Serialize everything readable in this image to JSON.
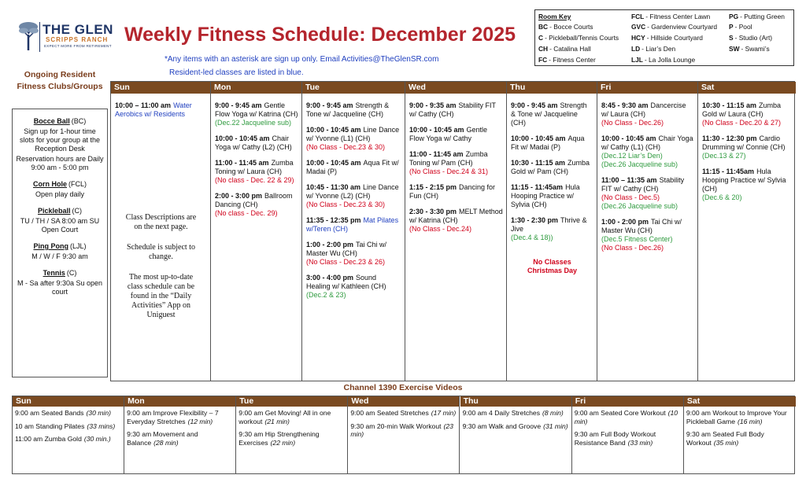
{
  "header": {
    "logo_name": "THE GLEN",
    "logo_sub": "SCRIPPS RANCH",
    "logo_tagline": "EXPECT MORE FROM RETIREMENT",
    "title": "Weekly Fitness Schedule: December 2025",
    "note_signup": "*Any items with an asterisk are sign up only. Email Activities@TheGlenSR.com",
    "note_resident": "Resident-led classes are listed in blue."
  },
  "room_key": {
    "title": "Room Key",
    "items": [
      {
        "code": "BC",
        "name": "- Bocce Courts"
      },
      {
        "code": "C",
        "name": "- Pickleball/Tennis Courts"
      },
      {
        "code": "CH",
        "name": "- Catalina Hall"
      },
      {
        "code": "FC",
        "name": "- Fitness Center"
      },
      {
        "code": "FCL",
        "name": "- Fitness Center Lawn"
      },
      {
        "code": "GVC",
        "name": "- Gardenview Courtyard"
      },
      {
        "code": "HCY",
        "name": "- Hillside Courtyard"
      },
      {
        "code": "LD",
        "name": "- Liar’s Den"
      },
      {
        "code": "LJL",
        "name": "- La Jolla Lounge"
      },
      {
        "code": "PG",
        "name": "- Putting Green"
      },
      {
        "code": "P",
        "name": "- Pool"
      },
      {
        "code": "S",
        "name": "- Studio (Art)"
      },
      {
        "code": "SW",
        "name": "- Swami’s"
      }
    ]
  },
  "clubs": {
    "title": "Ongoing Resident Fitness Clubs/Groups",
    "items": [
      {
        "name": "Bocce Ball",
        "room": "(BC)",
        "details": [
          "Sign up for 1-hour time slots for your group at the Reception Desk",
          "Reservation hours are Daily 9:00 am - 5:00 pm"
        ]
      },
      {
        "name": "Corn Hole",
        "room": "(FCL)",
        "details": [
          "Open play daily"
        ]
      },
      {
        "name": "Pickleball",
        "room": "(C)",
        "details": [
          "TU / TH / SA 8:00 am SU Open Court"
        ]
      },
      {
        "name": "Ping Pong",
        "room": "(LJL)",
        "details": [
          "M / W / F 9:30 am"
        ]
      },
      {
        "name": "Tennis",
        "room": "(C)",
        "details": [
          "M - Sa after 9:30a Su open court"
        ]
      }
    ]
  },
  "schedule": {
    "days": [
      {
        "name": "Sun",
        "entries": [
          {
            "time": "10:00 – 11:00 am",
            "text": "Water Aerobics w/ Residents",
            "resident_led": true,
            "notes": []
          }
        ],
        "extras": [
          "Class Descriptions are on the next page.",
          "Schedule is subject to change.",
          "The most up-to-date class schedule can be found in the “Daily Activities” App on Uniguest"
        ]
      },
      {
        "name": "Mon",
        "entries": [
          {
            "time": "9:00 - 9:45 am",
            "text": "Gentle Flow Yoga w/ Katrina (CH)",
            "notes": [
              {
                "text": "(Dec.22 Jacqueline sub)",
                "color": "green"
              }
            ]
          },
          {
            "time": "10:00 - 10:45 am",
            "text": "Chair Yoga w/ Cathy (L2) (CH)",
            "notes": []
          },
          {
            "time": "11:00 - 11:45 am",
            "text": "Zumba Toning w/ Laura (CH)",
            "notes": [
              {
                "text": "(No class - Dec. 22 & 29)",
                "color": "red"
              }
            ]
          },
          {
            "time": "2:00 - 3:00 pm",
            "text": "Ballroom Dancing (CH)",
            "notes": [
              {
                "text": "(No class - Dec. 29)",
                "color": "red"
              }
            ]
          }
        ]
      },
      {
        "name": "Tue",
        "entries": [
          {
            "time": "9:00 - 9:45 am",
            "text": "Strength & Tone w/ Jacqueline (CH)",
            "notes": []
          },
          {
            "time": "10:00 - 10:45 am",
            "text": "Line Dance w/ Yvonne (L1) (CH)",
            "notes": [
              {
                "text": "(No Class - Dec.23 & 30)",
                "color": "red"
              }
            ]
          },
          {
            "time": "10:00 - 10:45 am",
            "text": "Aqua Fit w/ Madai (P)",
            "notes": []
          },
          {
            "time": "10:45 - 11:30 am",
            "text": "Line Dance w/ Yvonne (L2) (CH)",
            "notes": [
              {
                "text": "(No Class - Dec.23 & 30)",
                "color": "red"
              }
            ]
          },
          {
            "time": "11:35 - 12:35 pm",
            "text": "Mat Pilates w/Teren (CH)",
            "resident_led": true,
            "notes": []
          },
          {
            "time": "1:00 - 2:00 pm",
            "text": "Tai Chi w/ Master Wu (CH)",
            "notes": [
              {
                "text": "(No Class - Dec.23 & 26)",
                "color": "red"
              }
            ]
          },
          {
            "time": "3:00 - 4:00 pm",
            "text": "Sound Healing w/ Kathleen (CH)",
            "notes": [
              {
                "text": "(Dec.2 & 23)",
                "color": "green"
              }
            ]
          }
        ]
      },
      {
        "name": "Wed",
        "entries": [
          {
            "time": "9:00 - 9:35 am",
            "text": "Stability FIT w/ Cathy (CH)",
            "notes": []
          },
          {
            "time": "10:00 - 10:45 am",
            "text": "Gentle Flow Yoga w/ Cathy",
            "notes": []
          },
          {
            "time": "11:00 - 11:45 am",
            "text": "Zumba Toning w/ Pam (CH)",
            "notes": [
              {
                "text": "(No Class - Dec.24 & 31)",
                "color": "red"
              }
            ]
          },
          {
            "time": "1:15 - 2:15 pm",
            "text": "Dancing for Fun (CH)",
            "notes": []
          },
          {
            "time": "2:30 - 3:30 pm",
            "text": "MELT Method w/ Katrina (CH)",
            "notes": [
              {
                "text": "(No Class - Dec.24)",
                "color": "red"
              }
            ]
          }
        ]
      },
      {
        "name": "Thu",
        "entries": [
          {
            "time": "9:00 - 9:45 am",
            "text": "Strength & Tone w/ Jacqueline (CH)",
            "notes": []
          },
          {
            "time": "10:00 - 10:45 am",
            "text": "Aqua Fit w/ Madai (P)",
            "notes": []
          },
          {
            "time": "10:30 - 11:15 am",
            "text": "Zumba Gold w/ Pam (CH)",
            "notes": []
          },
          {
            "time": "11:15 - 11:45am",
            "text": "Hula Hooping Practice w/ Sylvia (CH)",
            "notes": []
          },
          {
            "time": "1:30 - 2:30 pm",
            "text": "Thrive & Jive",
            "notes": [
              {
                "text": "(Dec.4 & 18))",
                "color": "green"
              }
            ]
          }
        ],
        "closure": "No Classes Christmas Day"
      },
      {
        "name": "Fri",
        "entries": [
          {
            "time": "8:45 - 9:30 am",
            "text": "Dancercise w/ Laura (CH)",
            "notes": [
              {
                "text": "(No Class - Dec.26)",
                "color": "red"
              }
            ]
          },
          {
            "time": "10:00 - 10:45 am",
            "text": "Chair Yoga w/ Cathy (L1) (CH)",
            "notes": [
              {
                "text": "(Dec.12 Liar’s Den)",
                "color": "green"
              },
              {
                "text": "(Dec.26 Jacqueline sub)",
                "color": "green"
              }
            ]
          },
          {
            "time": "11:00 – 11:35 am",
            "text": "Stability FIT w/ Cathy (CH)",
            "notes": [
              {
                "text": "(No Class - Dec.5)",
                "color": "red"
              },
              {
                "text": "(Dec.26 Jacqueline sub)",
                "color": "green"
              }
            ]
          },
          {
            "time": "1:00 - 2:00 pm",
            "text": "Tai Chi w/ Master Wu (CH)",
            "notes": [
              {
                "text": "(Dec.5  Fitness Center)",
                "color": "green"
              },
              {
                "text": "(No Class - Dec.26)",
                "color": "red"
              }
            ]
          }
        ]
      },
      {
        "name": "Sat",
        "entries": [
          {
            "time": "10:30 - 11:15 am",
            "text": "Zumba Gold w/ Laura (CH)",
            "notes": [
              {
                "text": "(No Class - Dec.20 & 27)",
                "color": "red"
              }
            ]
          },
          {
            "time": "11:30 - 12:30 pm",
            "text": "Cardio Drumming w/ Connie (CH)",
            "notes": [
              {
                "text": "(Dec.13 & 27)",
                "color": "green"
              }
            ]
          },
          {
            "time": "11:15 - 11:45am",
            "text": "Hula Hooping Practice w/ Sylvia (CH)",
            "notes": [
              {
                "text": "(Dec.6 & 20)",
                "color": "green"
              }
            ]
          }
        ]
      }
    ]
  },
  "videos": {
    "title": "Channel 1390 Exercise Videos",
    "days": [
      {
        "name": "Sun",
        "entries": [
          {
            "text": "9:00 am Seated Bands",
            "duration": "(30 min)"
          },
          {
            "text": "10 am Standing Pilates",
            "duration": "(33 mins)"
          },
          {
            "text": "11:00 am Zumba Gold",
            "duration": "(30 min.)"
          }
        ]
      },
      {
        "name": "Mon",
        "entries": [
          {
            "text": "9:00 am  Improve Flexibility – 7 Everyday Stretches",
            "duration": "(12 min)"
          },
          {
            "text": "9:30 am Movement and Balance",
            "duration": "(28 min)"
          }
        ]
      },
      {
        "name": "Tue",
        "entries": [
          {
            "text": "9:00 am Get Moving! All in one workout",
            "duration": "(21 min)"
          },
          {
            "text": "9:30 am Hip Strengthening Exercises",
            "duration": "(22 min)"
          }
        ]
      },
      {
        "name": "Wed",
        "entries": [
          {
            "text": "9:00 am  Seated Stretches",
            "duration": "(17 min)"
          },
          {
            "text": "9:30 am 20-min Walk Workout",
            "duration": "(23 min)"
          }
        ]
      },
      {
        "name": "Thu",
        "entries": [
          {
            "text": "9:00 am  4 Daily Stretches",
            "duration": "(8 min)"
          },
          {
            "text": "9:30 am Walk and Groove",
            "duration": "(31 min)"
          }
        ]
      },
      {
        "name": "Fri",
        "entries": [
          {
            "text": "9:00 am Seated Core Workout",
            "duration": "(10 min)"
          },
          {
            "text": "9:30 am Full Body Workout Resistance Band",
            "duration": "(33 min)"
          }
        ]
      },
      {
        "name": "Sat",
        "entries": [
          {
            "text": "9:00 am  Workout to Improve Your Pickleball Game",
            "duration": "(16 min)"
          },
          {
            "text": "9:30 am Seated Full Body Workout",
            "duration": "(35 min)"
          }
        ]
      }
    ]
  }
}
